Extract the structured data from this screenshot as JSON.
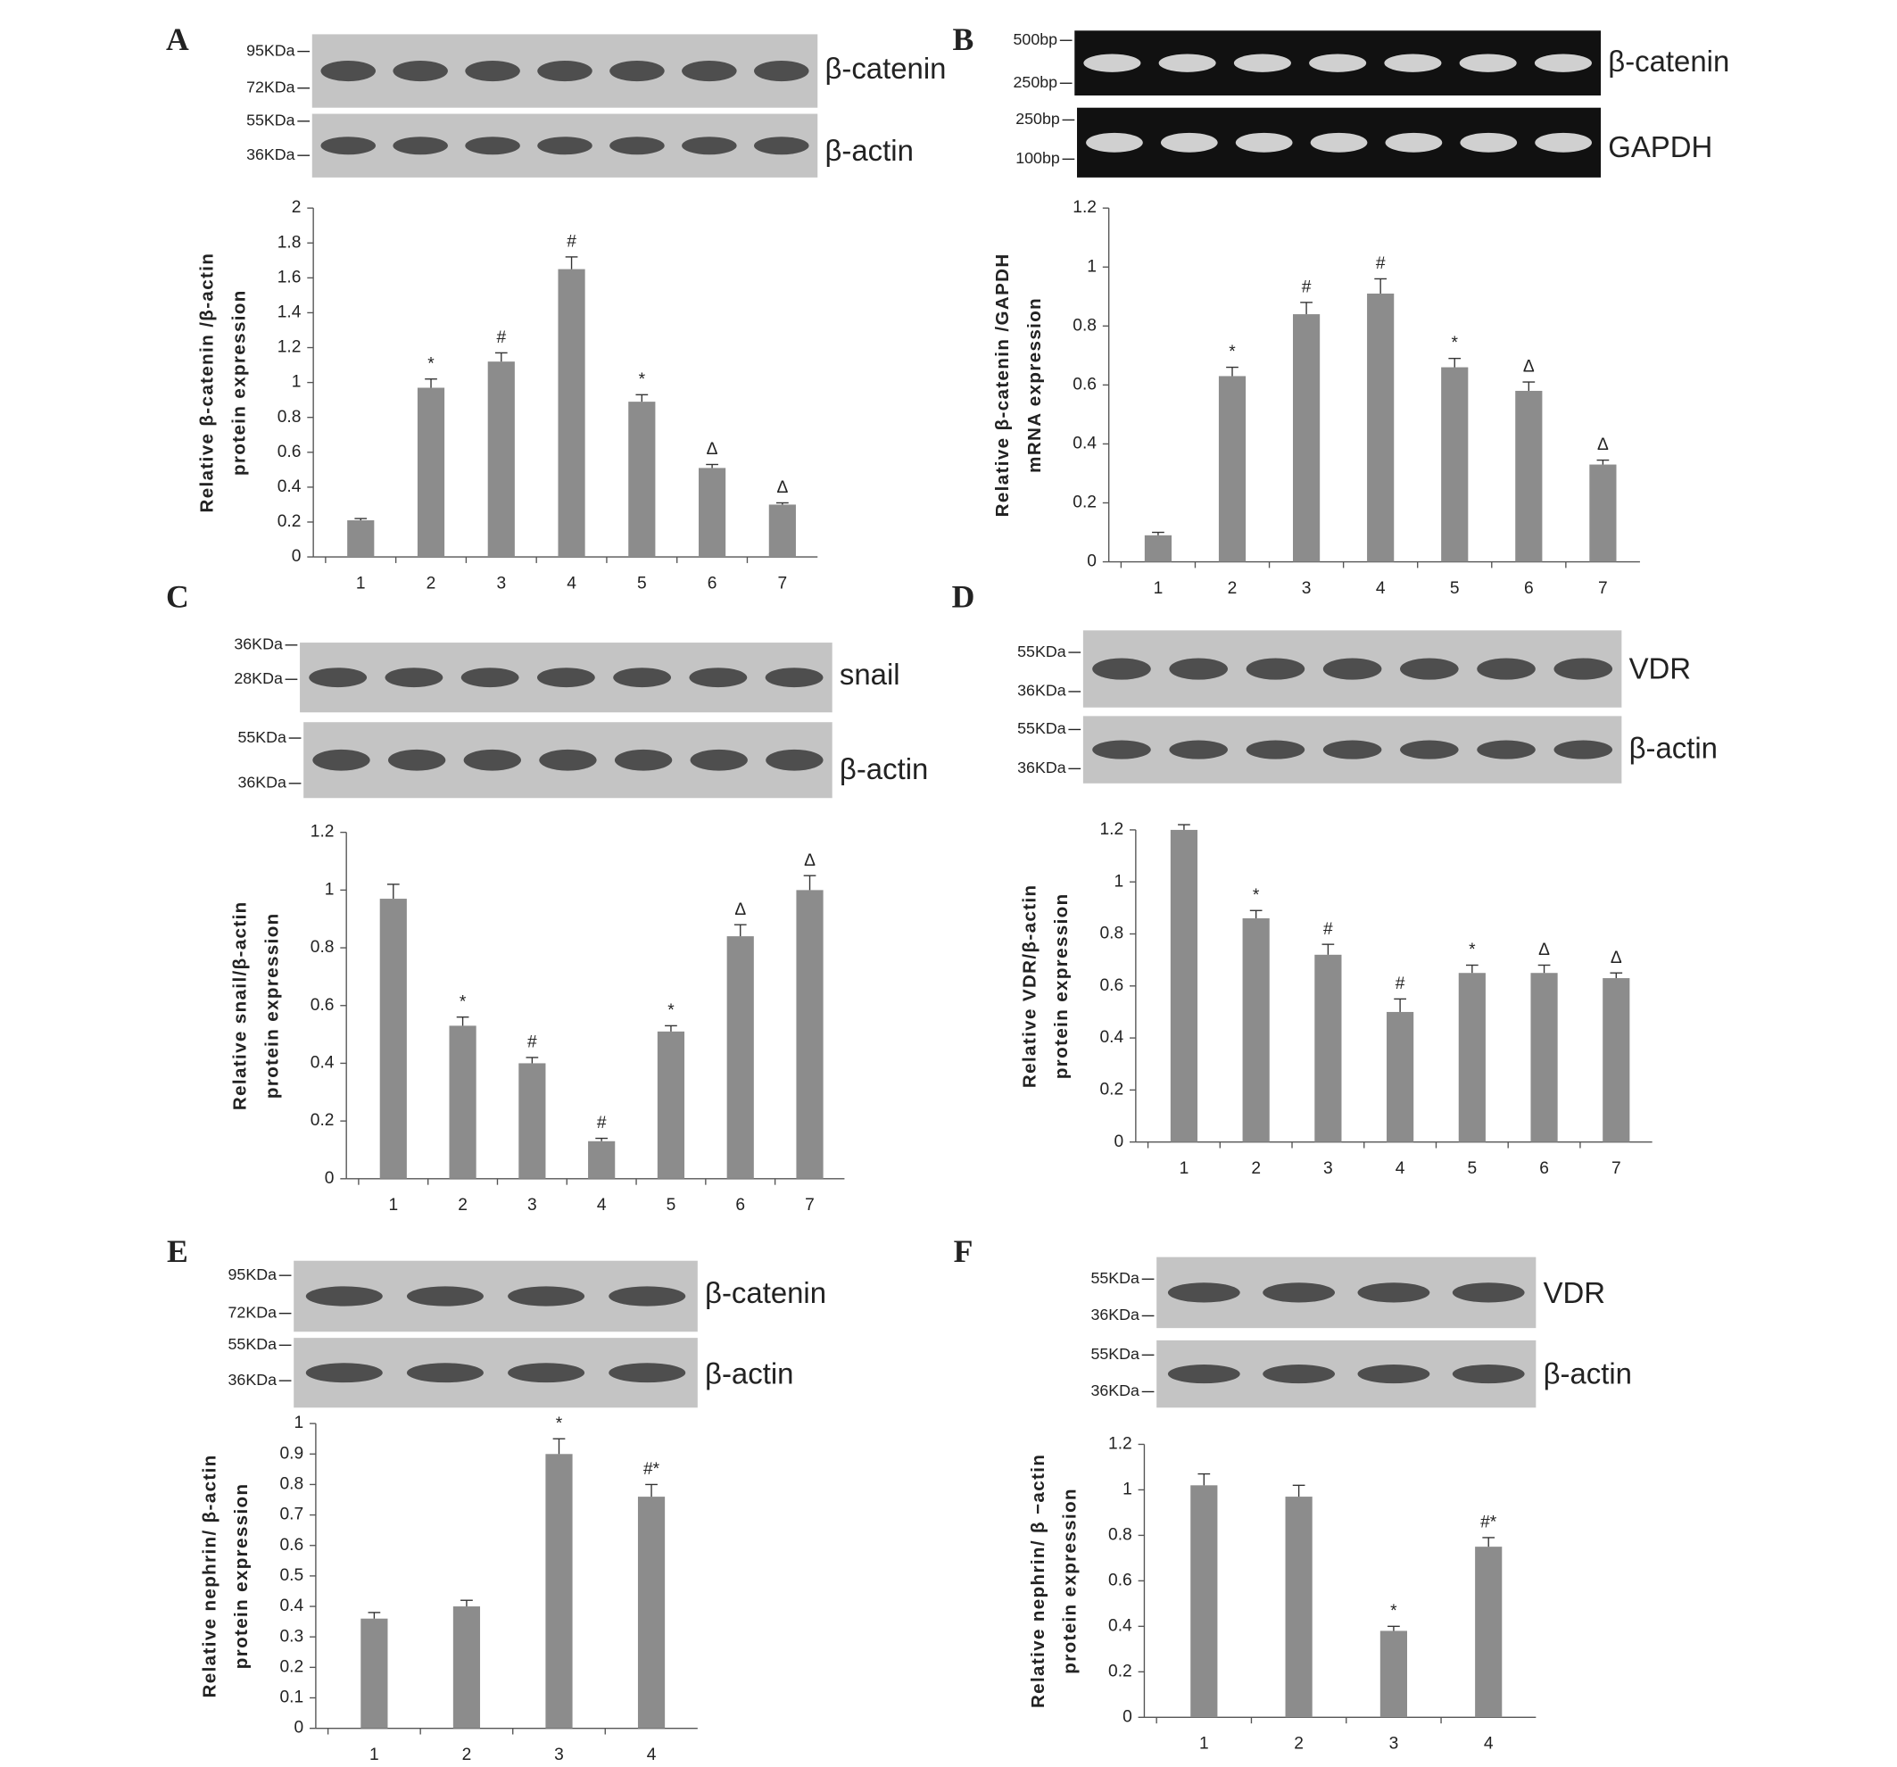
{
  "chart_data": [
    {
      "type": "bar",
      "panel": "A",
      "ylabel": [
        "Relative β-catenin /β-actin",
        "protein expression"
      ],
      "blots": [
        {
          "label": "β-catenin",
          "markers": [
            "95KDa",
            "72KDa"
          ]
        },
        {
          "label": "β-actin",
          "markers": [
            "55KDa",
            "36KDa"
          ]
        }
      ],
      "categories": [
        "1",
        "2",
        "3",
        "4",
        "5",
        "6",
        "7"
      ],
      "values": [
        0.21,
        0.97,
        1.12,
        1.65,
        0.89,
        0.51,
        0.3
      ],
      "errors": [
        0.01,
        0.05,
        0.05,
        0.07,
        0.04,
        0.02,
        0.01
      ],
      "annotations": [
        null,
        "*",
        "#",
        "#",
        "*",
        "Δ",
        "Δ"
      ],
      "color": "#8c8c8c",
      "ylim": [
        0,
        2
      ],
      "yticks": [
        0,
        0.2,
        0.4,
        0.6,
        0.8,
        1,
        1.2,
        1.4,
        1.6,
        1.8,
        2
      ]
    },
    {
      "type": "bar",
      "panel": "B",
      "ylabel": [
        "Relative β-catenin /GAPDH",
        "mRNA expression"
      ],
      "blots": [
        {
          "label": "β-catenin",
          "markers": [
            "500bp",
            "250bp"
          ]
        },
        {
          "label": "GAPDH",
          "markers": [
            "250bp",
            "100bp"
          ]
        }
      ],
      "categories": [
        "1",
        "2",
        "3",
        "4",
        "5",
        "6",
        "7"
      ],
      "values": [
        0.09,
        0.63,
        0.84,
        0.91,
        0.66,
        0.58,
        0.33
      ],
      "errors": [
        0.01,
        0.03,
        0.04,
        0.05,
        0.03,
        0.03,
        0.015
      ],
      "annotations": [
        null,
        "*",
        "#",
        "#",
        "*",
        "Δ",
        "Δ"
      ],
      "color": "#8c8c8c",
      "ylim": [
        0,
        1.2
      ],
      "yticks": [
        0,
        0.2,
        0.4,
        0.6,
        0.8,
        1,
        1.2
      ]
    },
    {
      "type": "bar",
      "panel": "C",
      "ylabel": [
        "Relative snail/β-actin",
        "protein expression"
      ],
      "blots": [
        {
          "label": "snail",
          "markers": [
            "36KDa",
            "28KDa"
          ]
        },
        {
          "label": "β-actin",
          "markers": [
            "55KDa",
            "36KDa"
          ]
        }
      ],
      "categories": [
        "1",
        "2",
        "3",
        "4",
        "5",
        "6",
        "7"
      ],
      "values": [
        0.97,
        0.53,
        0.4,
        0.13,
        0.51,
        0.84,
        1.0
      ],
      "errors": [
        0.05,
        0.03,
        0.02,
        0.01,
        0.02,
        0.04,
        0.05
      ],
      "annotations": [
        null,
        "*",
        "#",
        "#",
        "*",
        "Δ",
        "Δ"
      ],
      "color": "#8c8c8c",
      "ylim": [
        0,
        1.2
      ],
      "yticks": [
        0,
        0.2,
        0.4,
        0.6,
        0.8,
        1,
        1.2
      ]
    },
    {
      "type": "bar",
      "panel": "D",
      "ylabel": [
        "Relative VDR/β-actin",
        "protein expression"
      ],
      "blots": [
        {
          "label": "VDR",
          "markers": [
            "55KDa",
            "36KDa"
          ]
        },
        {
          "label": "β-actin",
          "markers": [
            "55KDa",
            "36KDa"
          ]
        }
      ],
      "categories": [
        "1",
        "2",
        "3",
        "4",
        "5",
        "6",
        "7"
      ],
      "values": [
        1.2,
        0.86,
        0.72,
        0.5,
        0.65,
        0.65,
        0.63
      ],
      "errors": [
        0.02,
        0.03,
        0.04,
        0.05,
        0.03,
        0.03,
        0.02
      ],
      "annotations": [
        null,
        "*",
        "#",
        "#",
        "*",
        "Δ",
        "Δ"
      ],
      "color": "#8c8c8c",
      "ylim": [
        0,
        1.2
      ],
      "yticks": [
        0,
        0.2,
        0.4,
        0.6,
        0.8,
        1,
        1.2
      ]
    },
    {
      "type": "bar",
      "panel": "E",
      "ylabel": [
        "Relative nephrin/ β-actin",
        "protein expression"
      ],
      "blots": [
        {
          "label": "β-catenin",
          "markers": [
            "95KDa",
            "72KDa"
          ]
        },
        {
          "label": "β-actin",
          "markers": [
            "55KDa",
            "36KDa"
          ]
        }
      ],
      "categories": [
        "1",
        "2",
        "3",
        "4"
      ],
      "values": [
        0.36,
        0.4,
        0.9,
        0.76
      ],
      "errors": [
        0.02,
        0.02,
        0.05,
        0.04
      ],
      "annotations": [
        null,
        null,
        "*",
        "#*"
      ],
      "color": "#8c8c8c",
      "ylim": [
        0,
        1
      ],
      "yticks": [
        0,
        0.1,
        0.2,
        0.3,
        0.4,
        0.5,
        0.6,
        0.7,
        0.8,
        0.9,
        1
      ]
    },
    {
      "type": "bar",
      "panel": "F",
      "ylabel": [
        "Relative nephrin/ β −actin",
        "protein expression"
      ],
      "blots": [
        {
          "label": "VDR",
          "markers": [
            "55KDa",
            "36KDa"
          ]
        },
        {
          "label": "β-actin",
          "markers": [
            "55KDa",
            "36KDa"
          ]
        }
      ],
      "categories": [
        "1",
        "2",
        "3",
        "4"
      ],
      "values": [
        1.02,
        0.97,
        0.38,
        0.75
      ],
      "errors": [
        0.05,
        0.05,
        0.02,
        0.04
      ],
      "annotations": [
        null,
        null,
        "*",
        "#*"
      ],
      "color": "#8c8c8c",
      "ylim": [
        0,
        1.2
      ],
      "yticks": [
        0,
        0.2,
        0.4,
        0.6,
        0.8,
        1,
        1.2
      ]
    }
  ]
}
